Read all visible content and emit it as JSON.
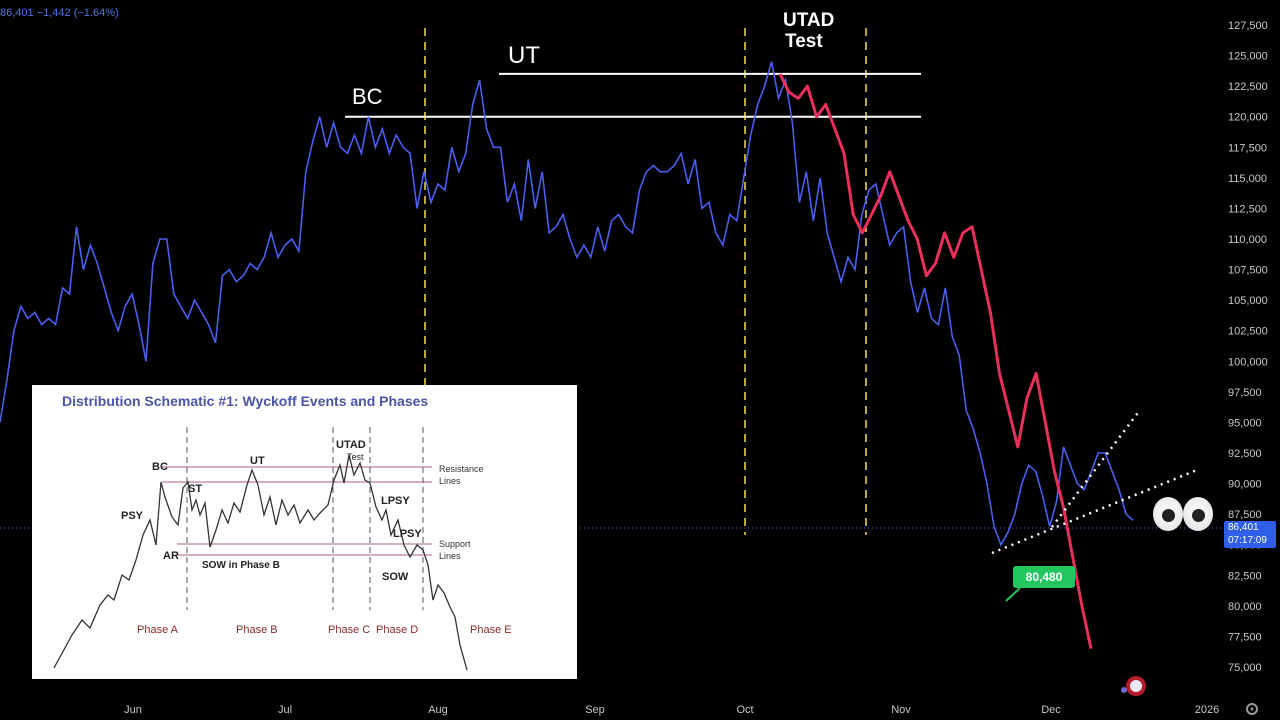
{
  "header": {
    "ticker_info": "86,401 −1,442 (−1.64%)"
  },
  "price_scale": {
    "current_price": "86,401",
    "countdown": "07:17:09",
    "axis_currency_icon": "settings-gear-icon"
  },
  "annotations": {
    "bc_label": "BC",
    "ut_label": "UT",
    "utad_label_line1": "UTAD",
    "utad_label_line2": "Test",
    "low_badge": "80,480"
  },
  "colors": {
    "price_line": "#4a5ff0",
    "projection": "#e8305a",
    "resistance": "#ffffff",
    "phase_divider": "#f5e04a",
    "low_badge": "#22c55e",
    "price_tag": "#2f5fe6"
  },
  "inset": {
    "title": "Distribution Schematic #1: Wyckoff Events and Phases",
    "events": {
      "psy": "PSY",
      "bc": "BC",
      "ar": "AR",
      "st": "ST",
      "ut": "UT",
      "sow_phase_b": "SOW in Phase B",
      "utad": "UTAD",
      "test": "Test",
      "lpsy1": "LPSY",
      "lpsy2": "LPSY",
      "sow": "SOW",
      "resistance": "Resistance",
      "resistance2": "Lines",
      "support": "Support",
      "support2": "Lines"
    },
    "phases": [
      "Phase A",
      "Phase B",
      "Phase C",
      "Phase D",
      "Phase E"
    ]
  },
  "chart_data": {
    "type": "line",
    "title": "",
    "xlabel": "",
    "ylabel": "",
    "x_ticks": [
      "Jun",
      "Jul",
      "Aug",
      "Sep",
      "Oct",
      "Nov",
      "Dec",
      "2026"
    ],
    "y_ticks": [
      127500,
      125000,
      122500,
      120000,
      117500,
      115000,
      112500,
      110000,
      107500,
      105000,
      102500,
      100000,
      97500,
      95000,
      92500,
      90000,
      87500,
      85000,
      82500,
      80000,
      77500,
      75000
    ],
    "ylim": [
      74000,
      129000
    ],
    "grid": false,
    "series": [
      {
        "values": [
          95000,
          98500,
          102500,
          104500,
          103500,
          104000,
          103000,
          103500,
          103000,
          106000,
          105500,
          111000,
          107500,
          109500,
          108000,
          106000,
          104000,
          102500,
          104500,
          105500,
          103000,
          100000,
          108000,
          110000,
          110000,
          105500,
          104500,
          103500,
          105000,
          104000,
          103000,
          101500,
          107000,
          107500,
          106500,
          107000,
          108000,
          107500,
          108500,
          110500,
          108500,
          109500,
          110000,
          109000,
          115500,
          118000,
          120000,
          117500,
          119500,
          117500,
          117000,
          118500,
          117000,
          120000,
          117500,
          119000,
          117000,
          118500,
          117500,
          117000,
          112500,
          115500,
          113000,
          114500,
          114000,
          117500,
          115500,
          117000,
          121000,
          123000,
          119000,
          117500,
          117500,
          113000,
          114500,
          111500,
          116500,
          112500,
          115500,
          110500,
          111000,
          112000,
          110000,
          108500,
          109500,
          108500,
          111000,
          109000,
          111500,
          112000,
          111000,
          110500,
          114000,
          115500,
          116000,
          115500,
          115500,
          116000,
          117000,
          114500,
          116500,
          112500,
          113000,
          110500,
          109500,
          112000,
          111500,
          115000,
          118500,
          121000,
          122500,
          124500,
          121500,
          123000,
          119500,
          113000,
          115500,
          111500,
          115000,
          110500,
          108500,
          106500,
          108500,
          107500,
          112000,
          114000,
          114500,
          112000,
          109500,
          110500,
          111000,
          106500,
          104000,
          106000,
          103500,
          103000,
          106000,
          102000,
          100500,
          96000,
          94500,
          92500,
          90000,
          86500,
          85000,
          86000,
          87500,
          90000,
          91500,
          91000,
          89000,
          86500,
          88500,
          93000,
          91500,
          90000,
          89500,
          91000,
          92500,
          92500,
          91000,
          89500,
          87500,
          87000
        ],
        "x_start_month": "May",
        "x_end_month": "Dec"
      },
      {
        "name": "",
        "values": [
          123500,
          122000,
          121500,
          122500,
          120000,
          121000,
          119000,
          117000,
          112000,
          110500,
          112000,
          113500,
          115500,
          113500,
          111500,
          110000,
          107000,
          108000,
          110500,
          108500,
          110500,
          111000,
          107500,
          104000,
          99000,
          96000,
          93000,
          97000,
          99000,
          95000,
          91000,
          88000,
          84000,
          80000,
          76500
        ]
      }
    ],
    "horizontal_lines": [
      {
        "label": "BC",
        "value": 120000
      },
      {
        "label": "UT",
        "value": 123500
      }
    ]
  }
}
